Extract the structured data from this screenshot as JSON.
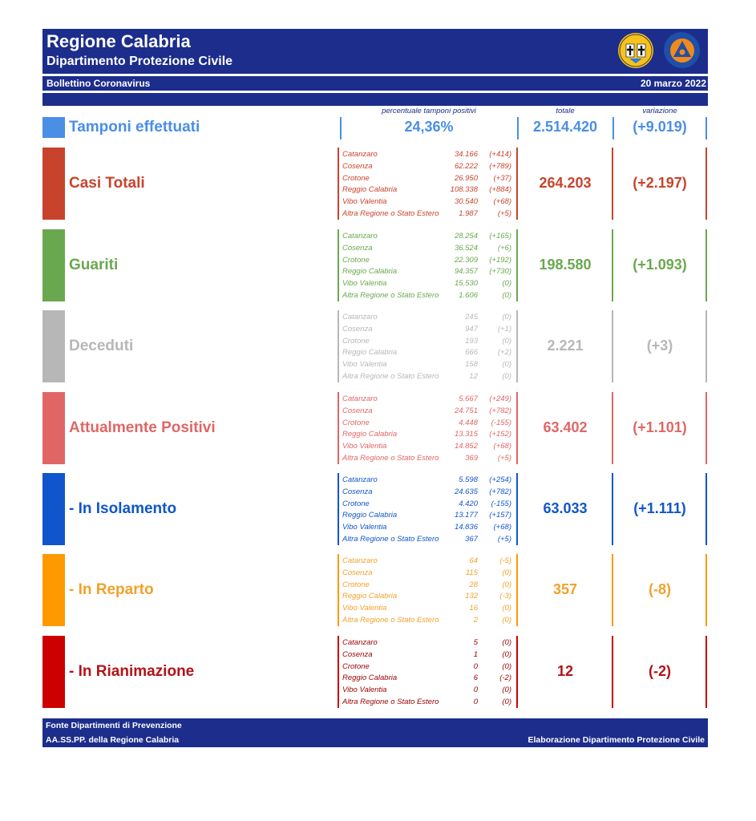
{
  "header": {
    "title": "Regione Calabria",
    "subtitle": "Dipartimento Protezione Civile",
    "bulletin": "Bollettino Coronavirus",
    "date": "20 marzo 2022"
  },
  "logos": {
    "region_logo": "regione-calabria-logo",
    "pc_logo_top": "PROTEZIONE CIVILE",
    "pc_logo_bottom": "Regione Calabria"
  },
  "columns": {
    "percent": "percentuale tamponi positivi",
    "total": "totale",
    "change": "variazione"
  },
  "tamponi": {
    "label": "Tamponi effettuati",
    "percent": "24,36%",
    "total": "2.514.420",
    "change": "(+9.019)",
    "color": "#4a8ee6"
  },
  "sections": [
    {
      "label": "Casi Totali",
      "total": "264.203",
      "change": "(+2.197)",
      "color": "#c8432c",
      "text_color": "#c8432c",
      "prov_color": "#c8432c",
      "rows": [
        {
          "name": "Catanzaro",
          "value": "34.166",
          "delta": "(+414)"
        },
        {
          "name": "Cosenza",
          "value": "62.222",
          "delta": "(+789)"
        },
        {
          "name": "Crotone",
          "value": "26.950",
          "delta": "(+37)"
        },
        {
          "name": "Reggio Calabria",
          "value": "108.338",
          "delta": "(+884)"
        },
        {
          "name": "Vibo Valentia",
          "value": "30.540",
          "delta": "(+68)"
        },
        {
          "name": "Altra Regione o Stato Estero",
          "value": "1.987",
          "delta": "(+5)"
        }
      ]
    },
    {
      "label": "Guariti",
      "total": "198.580",
      "change": "(+1.093)",
      "color": "#6aa84f",
      "text_color": "#6aa84f",
      "prov_color": "#6aa84f",
      "rows": [
        {
          "name": "Catanzaro",
          "value": "28.254",
          "delta": "(+165)"
        },
        {
          "name": "Cosenza",
          "value": "36.524",
          "delta": "(+6)"
        },
        {
          "name": "Crotone",
          "value": "22.309",
          "delta": "(+192)"
        },
        {
          "name": "Reggio Calabria",
          "value": "94.357",
          "delta": "(+730)"
        },
        {
          "name": "Vibo Valentia",
          "value": "15.530",
          "delta": "(0)"
        },
        {
          "name": "Altra Regione o Stato Estero",
          "value": "1.606",
          "delta": "(0)"
        }
      ]
    },
    {
      "label": "Deceduti",
      "total": "2.221",
      "change": "(+3)",
      "color": "#b7b7b7",
      "text_color": "#b7b7b7",
      "prov_color": "#b7b7b7",
      "rows": [
        {
          "name": "Catanzaro",
          "value": "245",
          "delta": "(0)"
        },
        {
          "name": "Cosenza",
          "value": "947",
          "delta": "(+1)"
        },
        {
          "name": "Crotone",
          "value": "193",
          "delta": "(0)"
        },
        {
          "name": "Reggio Calabria",
          "value": "666",
          "delta": "(+2)"
        },
        {
          "name": "Vibo Valentia",
          "value": "158",
          "delta": "(0)"
        },
        {
          "name": "Altra Regione o Stato Estero",
          "value": "12",
          "delta": "(0)"
        }
      ]
    },
    {
      "label": "Attualmente Positivi",
      "total": "63.402",
      "change": "(+1.101)",
      "color": "#e06666",
      "text_color": "#e06666",
      "prov_color": "#e06666",
      "rows": [
        {
          "name": "Catanzaro",
          "value": "5.667",
          "delta": "(+249)"
        },
        {
          "name": "Cosenza",
          "value": "24.751",
          "delta": "(+782)"
        },
        {
          "name": "Crotone",
          "value": "4.448",
          "delta": "(-155)"
        },
        {
          "name": "Reggio Calabria",
          "value": "13.315",
          "delta": "(+152)"
        },
        {
          "name": "Vibo Valentia",
          "value": "14.852",
          "delta": "(+68)"
        },
        {
          "name": "Altra Regione o Stato Estero",
          "value": "369",
          "delta": "(+5)"
        }
      ]
    },
    {
      "label": "- In Isolamento",
      "total": "63.033",
      "change": "(+1.111)",
      "color": "#1155cc",
      "text_color": "#1155cc",
      "prov_color": "#1155cc",
      "rows": [
        {
          "name": "Catanzaro",
          "value": "5.598",
          "delta": "(+254)"
        },
        {
          "name": "Cosenza",
          "value": "24.635",
          "delta": "(+782)"
        },
        {
          "name": "Crotone",
          "value": "4.420",
          "delta": "(-155)"
        },
        {
          "name": "Reggio Calabria",
          "value": "13.177",
          "delta": "(+157)"
        },
        {
          "name": "Vibo Valentia",
          "value": "14.836",
          "delta": "(+68)"
        },
        {
          "name": "Altra Regione o Stato Estero",
          "value": "367",
          "delta": "(+5)"
        }
      ]
    },
    {
      "label": "- In Reparto",
      "total": "357",
      "change": "(-8)",
      "color": "#ff9900",
      "text_color": "#f1a12c",
      "prov_color": "#f1a12c",
      "rows": [
        {
          "name": "Catanzaro",
          "value": "64",
          "delta": "(-5)"
        },
        {
          "name": "Cosenza",
          "value": "115",
          "delta": "(0)"
        },
        {
          "name": "Crotone",
          "value": "28",
          "delta": "(0)"
        },
        {
          "name": "Reggio Calabria",
          "value": "132",
          "delta": "(-3)"
        },
        {
          "name": "Vibo Valentia",
          "value": "16",
          "delta": "(0)"
        },
        {
          "name": "Altra Regione o Stato Estero",
          "value": "2",
          "delta": "(0)"
        }
      ]
    },
    {
      "label": "- In Rianimazione",
      "total": "12",
      "change": "(-2)",
      "color": "#cc0000",
      "text_color": "#b31217",
      "prov_color": "#990000",
      "rows": [
        {
          "name": "Catanzaro",
          "value": "5",
          "delta": "(0)"
        },
        {
          "name": "Cosenza",
          "value": "1",
          "delta": "(0)"
        },
        {
          "name": "Crotone",
          "value": "0",
          "delta": "(0)"
        },
        {
          "name": "Reggio Calabria",
          "value": "6",
          "delta": "(-2)"
        },
        {
          "name": "Vibo Valentia",
          "value": "0",
          "delta": "(0)"
        },
        {
          "name": "Altra Regione o Stato Estero",
          "value": "0",
          "delta": "(0)"
        }
      ]
    }
  ],
  "footer": {
    "source_line1": "Fonte Dipartimenti di Prevenzione",
    "source_line2": "AA.SS.PP.  della Regione Calabria",
    "credit": "Elaborazione Dipartimento Protezione Civile"
  }
}
